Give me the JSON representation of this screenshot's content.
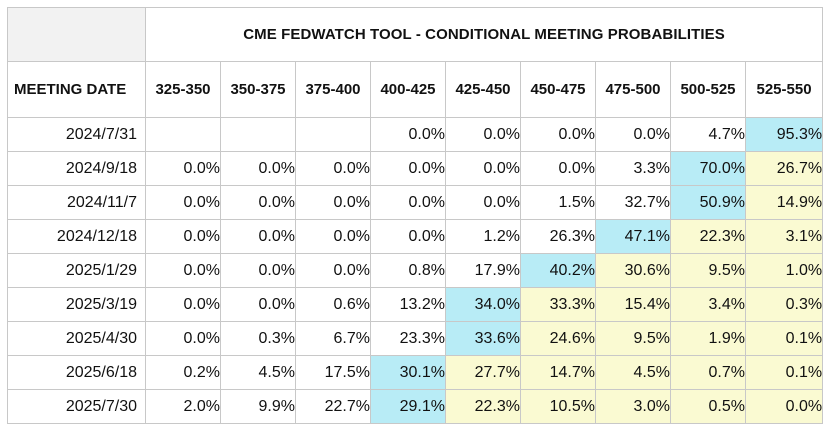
{
  "table": {
    "title": "CME FEDWATCH TOOL - CONDITIONAL MEETING PROBABILITIES",
    "meeting_header": "MEETING DATE",
    "columns": [
      "325-350",
      "350-375",
      "375-400",
      "400-425",
      "425-450",
      "450-475",
      "475-500",
      "500-525",
      "525-550"
    ],
    "colors": {
      "highlight": "#b8ecf6",
      "above": "#fafad2",
      "default": "#ffffff"
    },
    "rows": [
      {
        "date": "2024/7/31",
        "values": [
          "",
          "",
          "",
          "0.0%",
          "0.0%",
          "0.0%",
          "0.0%",
          "4.7%",
          "95.3%"
        ],
        "shade": [
          "e",
          "e",
          "e",
          "w",
          "w",
          "w",
          "w",
          "w",
          "c"
        ]
      },
      {
        "date": "2024/9/18",
        "values": [
          "0.0%",
          "0.0%",
          "0.0%",
          "0.0%",
          "0.0%",
          "0.0%",
          "3.3%",
          "70.0%",
          "26.7%"
        ],
        "shade": [
          "w",
          "w",
          "w",
          "w",
          "w",
          "w",
          "w",
          "c",
          "y"
        ]
      },
      {
        "date": "2024/11/7",
        "values": [
          "0.0%",
          "0.0%",
          "0.0%",
          "0.0%",
          "0.0%",
          "1.5%",
          "32.7%",
          "50.9%",
          "14.9%"
        ],
        "shade": [
          "w",
          "w",
          "w",
          "w",
          "w",
          "w",
          "w",
          "c",
          "y"
        ]
      },
      {
        "date": "2024/12/18",
        "values": [
          "0.0%",
          "0.0%",
          "0.0%",
          "0.0%",
          "1.2%",
          "26.3%",
          "47.1%",
          "22.3%",
          "3.1%"
        ],
        "shade": [
          "w",
          "w",
          "w",
          "w",
          "w",
          "w",
          "c",
          "y",
          "y"
        ]
      },
      {
        "date": "2025/1/29",
        "values": [
          "0.0%",
          "0.0%",
          "0.0%",
          "0.8%",
          "17.9%",
          "40.2%",
          "30.6%",
          "9.5%",
          "1.0%"
        ],
        "shade": [
          "w",
          "w",
          "w",
          "w",
          "w",
          "c",
          "y",
          "y",
          "y"
        ]
      },
      {
        "date": "2025/3/19",
        "values": [
          "0.0%",
          "0.0%",
          "0.6%",
          "13.2%",
          "34.0%",
          "33.3%",
          "15.4%",
          "3.4%",
          "0.3%"
        ],
        "shade": [
          "w",
          "w",
          "w",
          "w",
          "c",
          "y",
          "y",
          "y",
          "y"
        ]
      },
      {
        "date": "2025/4/30",
        "values": [
          "0.0%",
          "0.3%",
          "6.7%",
          "23.3%",
          "33.6%",
          "24.6%",
          "9.5%",
          "1.9%",
          "0.1%"
        ],
        "shade": [
          "w",
          "w",
          "w",
          "w",
          "c",
          "y",
          "y",
          "y",
          "y"
        ]
      },
      {
        "date": "2025/6/18",
        "values": [
          "0.2%",
          "4.5%",
          "17.5%",
          "30.1%",
          "27.7%",
          "14.7%",
          "4.5%",
          "0.7%",
          "0.1%"
        ],
        "shade": [
          "w",
          "w",
          "w",
          "c",
          "y",
          "y",
          "y",
          "y",
          "y"
        ]
      },
      {
        "date": "2025/7/30",
        "values": [
          "2.0%",
          "9.9%",
          "22.7%",
          "29.1%",
          "22.3%",
          "10.5%",
          "3.0%",
          "0.5%",
          "0.0%"
        ],
        "shade": [
          "w",
          "w",
          "w",
          "c",
          "y",
          "y",
          "y",
          "y",
          "y"
        ]
      }
    ]
  }
}
